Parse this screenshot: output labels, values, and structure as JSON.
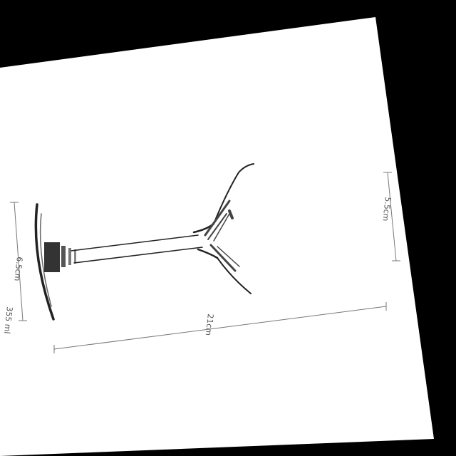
{
  "photo": {
    "subject": "glass-drawing",
    "background_color": "#000000",
    "paper_color": "#ffffff",
    "line_color": "#222222",
    "dimension_color": "#777777"
  },
  "dimensions": {
    "rim_diameter": "5.5cm",
    "height": "21cm",
    "base_diameter": "6.5cm",
    "capacity": "355 ml"
  }
}
